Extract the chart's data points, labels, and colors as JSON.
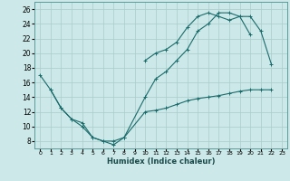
{
  "xlabel": "Humidex (Indice chaleur)",
  "bg_color": "#cce8e8",
  "grid_color": "#aacccc",
  "line_color": "#1a6b6b",
  "xlim": [
    -0.5,
    23.5
  ],
  "ylim": [
    7,
    27
  ],
  "xticks": [
    0,
    1,
    2,
    3,
    4,
    5,
    6,
    7,
    8,
    9,
    10,
    11,
    12,
    13,
    14,
    15,
    16,
    17,
    18,
    19,
    20,
    21,
    22,
    23
  ],
  "yticks": [
    8,
    10,
    12,
    14,
    16,
    18,
    20,
    22,
    24,
    26
  ],
  "line1_x": [
    0,
    1,
    2,
    3,
    4,
    5,
    6,
    7,
    8,
    10,
    11,
    12,
    13,
    14,
    15,
    16,
    17,
    18,
    19,
    20,
    21,
    22
  ],
  "line1_y": [
    17,
    15,
    12.5,
    11,
    10,
    8.5,
    8,
    7.5,
    8.5,
    14,
    16.5,
    17.5,
    19,
    20.5,
    23,
    24,
    25.5,
    25.5,
    25,
    25,
    23,
    18.5
  ],
  "line2_x": [
    10,
    11,
    12,
    13,
    14,
    15,
    16,
    17,
    18,
    19,
    20
  ],
  "line2_y": [
    19,
    20,
    20.5,
    21.5,
    23.5,
    25,
    25.5,
    25,
    24.5,
    25,
    22.5
  ],
  "line3_x": [
    1,
    2,
    3,
    4,
    5,
    6,
    7,
    8,
    10,
    11,
    12,
    13,
    14,
    15,
    16,
    17,
    18,
    19,
    20,
    21,
    22
  ],
  "line3_y": [
    15,
    12.5,
    11,
    10.5,
    8.5,
    8,
    8,
    8.5,
    12,
    12.2,
    12.5,
    13,
    13.5,
    13.8,
    14,
    14.2,
    14.5,
    14.8,
    15,
    15,
    15
  ]
}
